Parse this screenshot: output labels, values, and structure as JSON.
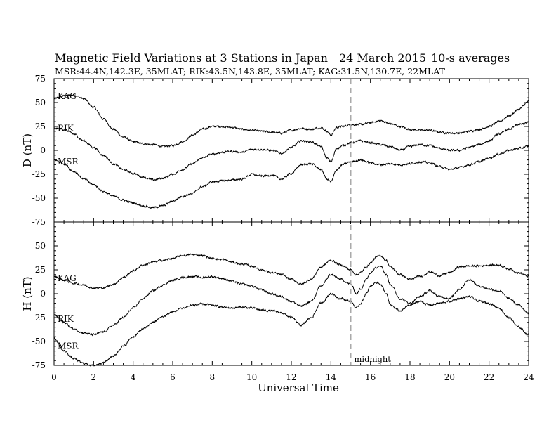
{
  "chart_data": {
    "type": "line",
    "title": "Magnetic Field Variations at 3 Stations in Japan",
    "date": "24  March   2015",
    "averaging": "10-s averages",
    "subtitle": "MSR:44.4N,142.3E, 35MLAT;   RIK:43.5N,143.8E, 35MLAT;   KAG:31.5N,130.7E, 22MLAT",
    "xlabel": "Universal Time",
    "xlim": [
      0,
      24
    ],
    "xticks": [
      "0",
      "2",
      "4",
      "6",
      "8",
      "10",
      "12",
      "14",
      "16",
      "18",
      "20",
      "22",
      "24"
    ],
    "annotation": {
      "x": 15,
      "label": "midnight",
      "color": "#aaaaaa"
    },
    "panels": [
      {
        "ylabel": "D (nT)",
        "ylim": [
          -75,
          75
        ],
        "yticks": [
          "75",
          "50",
          "25",
          "0",
          "-25",
          "-50",
          "-75"
        ],
        "series": [
          {
            "name": "KAG",
            "x": [
              0,
              0.5,
              1,
              1.5,
              2,
              2.5,
              3,
              3.5,
              4,
              4.5,
              5,
              5.5,
              6,
              6.5,
              7,
              7.5,
              8,
              8.5,
              9,
              9.5,
              10,
              10.5,
              11,
              11.5,
              12,
              12.5,
              13,
              13.5,
              13.8,
              14,
              14.3,
              14.6,
              15,
              15.5,
              16,
              16.5,
              17,
              17.5,
              18,
              18.5,
              19,
              19.5,
              20,
              20.5,
              21,
              21.5,
              22,
              22.5,
              23,
              23.5,
              24
            ],
            "y": [
              54,
              57,
              58,
              54,
              45,
              33,
              22,
              14,
              9,
              7,
              6,
              4,
              5,
              9,
              16,
              22,
              25,
              25,
              24,
              22,
              21,
              20,
              19,
              18,
              21,
              23,
              22,
              24,
              20,
              16,
              24,
              25,
              27,
              27,
              29,
              31,
              28,
              25,
              22,
              21,
              21,
              19,
              18,
              18,
              20,
              22,
              25,
              30,
              36,
              43,
              51
            ]
          },
          {
            "name": "RIK",
            "x": [
              0,
              0.5,
              1,
              1.5,
              2,
              2.5,
              3,
              3.5,
              4,
              4.5,
              5,
              5.5,
              6,
              6.5,
              7,
              7.5,
              8,
              8.5,
              9,
              9.5,
              10,
              10.5,
              11,
              11.5,
              12,
              12.5,
              13,
              13.5,
              13.8,
              14,
              14.3,
              14.6,
              15,
              15.5,
              16,
              16.5,
              17,
              17.5,
              18,
              18.5,
              19,
              19.5,
              20,
              20.5,
              21,
              21.5,
              22,
              22.5,
              23,
              23.5,
              24
            ],
            "y": [
              23,
              22,
              17,
              10,
              3,
              -5,
              -14,
              -20,
              -24,
              -28,
              -31,
              -29,
              -25,
              -20,
              -14,
              -8,
              -4,
              -2,
              -1,
              -2,
              1,
              1,
              0,
              -3,
              3,
              10,
              9,
              4,
              -8,
              -12,
              2,
              5,
              8,
              10,
              8,
              6,
              4,
              0,
              4,
              6,
              5,
              2,
              0,
              0,
              3,
              6,
              10,
              17,
              22,
              27,
              29
            ]
          },
          {
            "name": "MSR",
            "x": [
              0,
              0.5,
              1,
              1.5,
              2,
              2.5,
              3,
              3.5,
              4,
              4.5,
              5,
              5.5,
              6,
              6.5,
              7,
              7.5,
              8,
              8.5,
              9,
              9.5,
              10,
              10.5,
              11,
              11.5,
              12,
              12.5,
              13,
              13.5,
              13.8,
              14,
              14.3,
              14.6,
              15,
              15.5,
              16,
              16.5,
              17,
              17.5,
              18,
              18.5,
              19,
              19.5,
              20,
              20.5,
              21,
              21.5,
              22,
              22.5,
              23,
              23.5,
              24
            ],
            "y": [
              -10,
              -14,
              -22,
              -30,
              -36,
              -43,
              -48,
              -52,
              -55,
              -58,
              -60,
              -58,
              -53,
              -48,
              -45,
              -38,
              -33,
              -32,
              -31,
              -30,
              -25,
              -27,
              -26,
              -30,
              -24,
              -15,
              -14,
              -20,
              -30,
              -33,
              -20,
              -15,
              -12,
              -10,
              -13,
              -15,
              -14,
              -15,
              -14,
              -12,
              -13,
              -17,
              -20,
              -18,
              -15,
              -12,
              -8,
              -4,
              0,
              2,
              4
            ]
          }
        ]
      },
      {
        "ylabel": "H (nT)",
        "ylim": [
          -75,
          75
        ],
        "yticks": [
          "50",
          "25",
          "0",
          "-25",
          "-50",
          "-75"
        ],
        "series": [
          {
            "name": "KAG",
            "x": [
              0,
              0.5,
              1,
              1.5,
              2,
              2.5,
              3,
              3.5,
              4,
              4.5,
              5,
              5.5,
              6,
              6.5,
              7,
              7.5,
              8,
              8.5,
              9,
              9.5,
              10,
              10.5,
              11,
              11.5,
              12,
              12.5,
              13,
              13.5,
              14,
              14.5,
              15,
              15.3,
              15.5,
              15.8,
              16,
              16.3,
              16.5,
              16.8,
              17,
              17.5,
              18,
              18.5,
              19,
              19.5,
              20,
              20.5,
              21,
              21.5,
              22,
              22.5,
              23,
              23.5,
              24
            ],
            "y": [
              18,
              14,
              11,
              9,
              6,
              6,
              10,
              17,
              24,
              30,
              33,
              35,
              37,
              40,
              41,
              40,
              37,
              36,
              33,
              31,
              29,
              25,
              22,
              20,
              15,
              10,
              15,
              28,
              35,
              30,
              25,
              20,
              22,
              28,
              32,
              38,
              40,
              35,
              28,
              20,
              15,
              18,
              23,
              19,
              22,
              28,
              29,
              29,
              30,
              30,
              26,
              22,
              18
            ]
          },
          {
            "name": "RIK",
            "x": [
              0,
              0.5,
              1,
              1.5,
              2,
              2.5,
              3,
              3.5,
              4,
              4.5,
              5,
              5.5,
              6,
              6.5,
              7,
              7.5,
              8,
              8.5,
              9,
              9.5,
              10,
              10.5,
              11,
              11.5,
              12,
              12.5,
              13,
              13.5,
              14,
              14.5,
              15,
              15.3,
              15.5,
              15.8,
              16,
              16.3,
              16.5,
              16.8,
              17,
              17.5,
              18,
              18.5,
              19,
              19.5,
              20,
              20.5,
              21,
              21.5,
              22,
              22.5,
              23,
              23.5,
              24
            ],
            "y": [
              -22,
              -30,
              -37,
              -41,
              -43,
              -40,
              -33,
              -25,
              -15,
              -5,
              3,
              9,
              14,
              17,
              18,
              17,
              18,
              16,
              13,
              10,
              8,
              4,
              0,
              -3,
              -8,
              -13,
              -8,
              8,
              20,
              15,
              10,
              0,
              5,
              15,
              22,
              28,
              30,
              20,
              10,
              -5,
              -10,
              -3,
              3,
              -3,
              -5,
              5,
              15,
              8,
              5,
              3,
              -5,
              -12,
              -20
            ]
          },
          {
            "name": "MSR",
            "x": [
              0,
              0.5,
              1,
              1.5,
              2,
              2.5,
              3,
              3.5,
              4,
              4.5,
              5,
              5.5,
              6,
              6.5,
              7,
              7.5,
              8,
              8.5,
              9,
              9.5,
              10,
              10.5,
              11,
              11.5,
              12,
              12.5,
              13,
              13.5,
              14,
              14.5,
              15,
              15.3,
              15.5,
              15.8,
              16,
              16.3,
              16.5,
              16.8,
              17,
              17.5,
              18,
              18.5,
              19,
              19.5,
              20,
              20.5,
              21,
              21.5,
              22,
              22.5,
              23,
              23.5,
              24
            ],
            "y": [
              -47,
              -60,
              -68,
              -73,
              -75,
              -72,
              -65,
              -55,
              -45,
              -37,
              -30,
              -24,
              -19,
              -15,
              -12,
              -11,
              -12,
              -14,
              -15,
              -14,
              -15,
              -17,
              -18,
              -20,
              -25,
              -33,
              -25,
              -10,
              0,
              -5,
              -8,
              -15,
              -10,
              0,
              8,
              12,
              10,
              0,
              -12,
              -18,
              -12,
              -8,
              -12,
              -10,
              -8,
              -5,
              -3,
              -8,
              -10,
              -15,
              -25,
              -35,
              -43
            ]
          }
        ]
      }
    ]
  }
}
